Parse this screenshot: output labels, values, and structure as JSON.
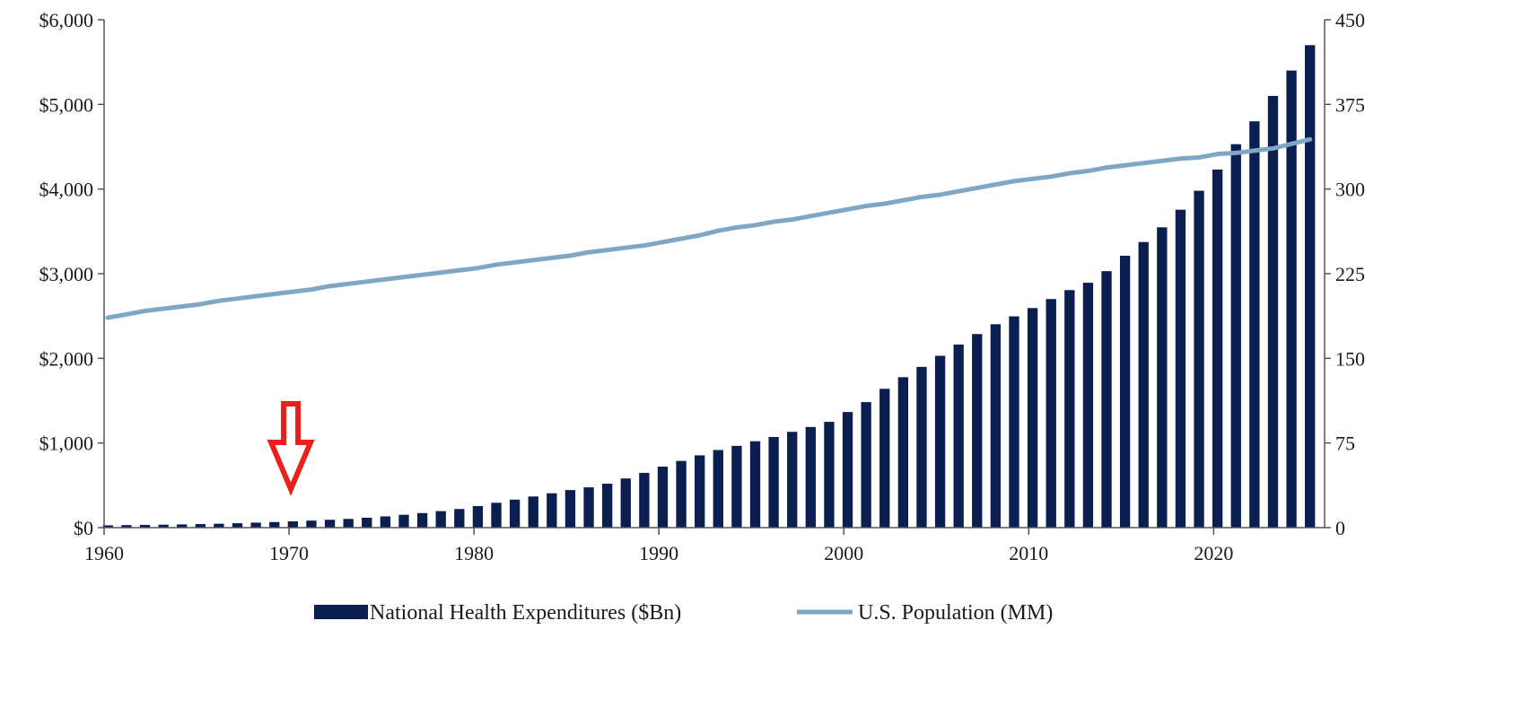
{
  "chart_data": {
    "type": "bar",
    "x": [
      1960,
      1961,
      1962,
      1963,
      1964,
      1965,
      1966,
      1967,
      1968,
      1969,
      1970,
      1971,
      1972,
      1973,
      1974,
      1975,
      1976,
      1977,
      1978,
      1979,
      1980,
      1981,
      1982,
      1983,
      1984,
      1985,
      1986,
      1987,
      1988,
      1989,
      1990,
      1991,
      1992,
      1993,
      1994,
      1995,
      1996,
      1997,
      1998,
      1999,
      2000,
      2001,
      2002,
      2003,
      2004,
      2005,
      2006,
      2007,
      2008,
      2009,
      2010,
      2011,
      2012,
      2013,
      2014,
      2015,
      2016,
      2017,
      2018,
      2019,
      2020,
      2021,
      2022,
      2023,
      2024,
      2025
    ],
    "xlim": [
      1960,
      2026
    ],
    "x_ticks": [
      1960,
      1970,
      1980,
      1990,
      2000,
      2010,
      2020
    ],
    "x_tick_labels": [
      "1960",
      "1970",
      "1980",
      "1990",
      "2000",
      "2010",
      "2020"
    ],
    "y_left": {
      "lim": [
        0,
        6000
      ],
      "ticks": [
        0,
        1000,
        2000,
        3000,
        4000,
        5000,
        6000
      ],
      "tick_labels": [
        "$0",
        "$1,000",
        "$2,000",
        "$3,000",
        "$4,000",
        "$5,000",
        "$6,000"
      ]
    },
    "y_right": {
      "lim": [
        0,
        450
      ],
      "ticks": [
        0,
        75,
        150,
        225,
        300,
        375,
        450
      ],
      "tick_labels": [
        "0",
        "75",
        "150",
        "225",
        "300",
        "375",
        "450"
      ]
    },
    "series": [
      {
        "name": "National Health Expenditures ($Bn)",
        "type": "bar",
        "axis": "left",
        "color": "#0a1f4f",
        "values": [
          27,
          30,
          32,
          35,
          38,
          42,
          46,
          52,
          59,
          66,
          74,
          83,
          93,
          103,
          117,
          133,
          152,
          172,
          195,
          220,
          255,
          294,
          331,
          368,
          406,
          444,
          476,
          519,
          581,
          647,
          721,
          788,
          854,
          917,
          966,
          1021,
          1071,
          1132,
          1189,
          1250,
          1366,
          1483,
          1640,
          1777,
          1899,
          2030,
          2163,
          2287,
          2403,
          2496,
          2594,
          2701,
          2806,
          2893,
          3030,
          3212,
          3374,
          3548,
          3756,
          3980,
          4230,
          4530,
          4800,
          5100,
          5400,
          5700
        ]
      },
      {
        "name": "U.S. Population (MM)",
        "type": "line",
        "axis": "right",
        "color": "#7ea7c6",
        "values": [
          186,
          189,
          192,
          194,
          196,
          198,
          201,
          203,
          205,
          207,
          209,
          211,
          214,
          216,
          218,
          220,
          222,
          224,
          226,
          228,
          230,
          233,
          235,
          237,
          239,
          241,
          244,
          246,
          248,
          250,
          253,
          256,
          259,
          263,
          266,
          268,
          271,
          273,
          276,
          279,
          282,
          285,
          287,
          290,
          293,
          295,
          298,
          301,
          304,
          307,
          309,
          311,
          314,
          316,
          319,
          321,
          323,
          325,
          327,
          328,
          331,
          332,
          334,
          336,
          340,
          344
        ]
      }
    ],
    "annotations": [
      {
        "type": "arrow",
        "direction": "down",
        "color": "#e8211c",
        "at_x": 1970
      }
    ],
    "legend": {
      "position": "bottom"
    },
    "grid": false
  }
}
